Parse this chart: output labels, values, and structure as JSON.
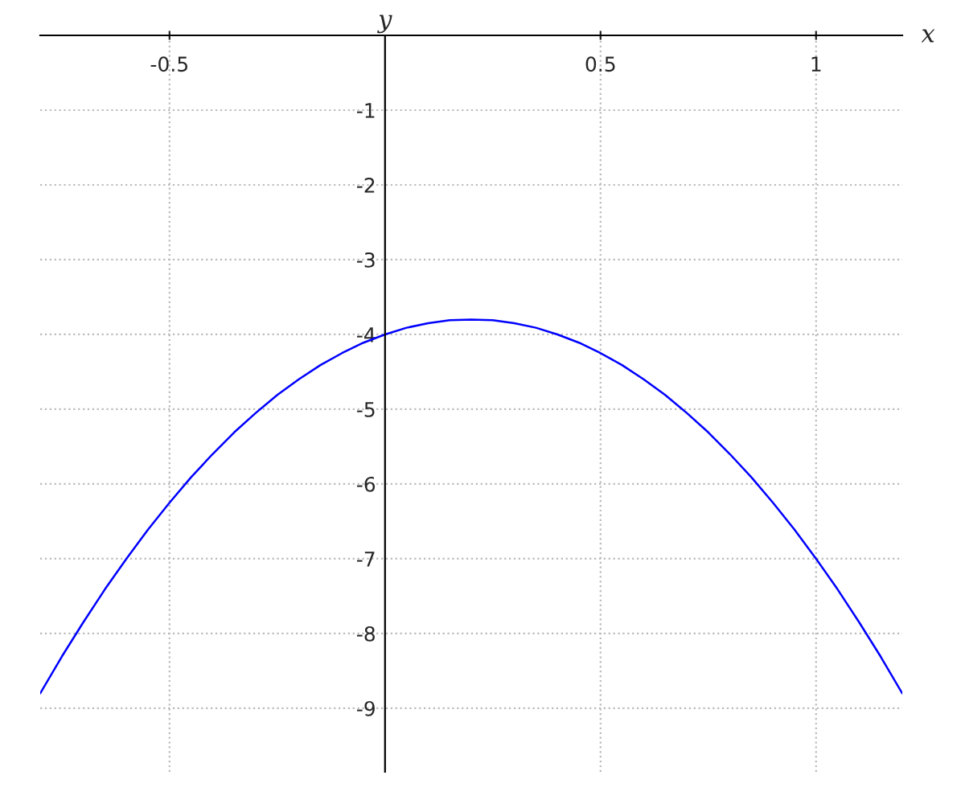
{
  "chart_data": {
    "type": "line",
    "xlabel": "x",
    "ylabel": "y",
    "x": [
      -0.8,
      -0.75,
      -0.7,
      -0.65,
      -0.6,
      -0.55,
      -0.5,
      -0.45,
      -0.4,
      -0.35,
      -0.3,
      -0.25,
      -0.2,
      -0.15,
      -0.1,
      -0.05,
      0,
      0.05,
      0.1,
      0.15,
      0.2,
      0.25,
      0.3,
      0.35,
      0.4,
      0.45,
      0.5,
      0.55,
      0.6,
      0.65,
      0.7,
      0.75,
      0.8,
      0.85,
      0.9,
      0.95,
      1.0,
      1.05,
      1.1,
      1.15,
      1.2
    ],
    "series": [
      {
        "color": "#0000ff",
        "values": [
          -8.8,
          -8.31,
          -7.85,
          -7.41,
          -7.0,
          -6.61,
          -6.25,
          -5.91,
          -5.6,
          -5.31,
          -5.05,
          -4.81,
          -4.6,
          -4.41,
          -4.25,
          -4.11,
          -4.0,
          -3.91,
          -3.85,
          -3.81,
          -3.8,
          -3.81,
          -3.85,
          -3.91,
          -4.0,
          -4.11,
          -4.25,
          -4.41,
          -4.6,
          -4.81,
          -5.05,
          -5.31,
          -5.6,
          -5.91,
          -6.25,
          -6.61,
          -7.0,
          -7.41,
          -7.85,
          -8.31,
          -8.8
        ]
      }
    ],
    "xlim": [
      -0.8,
      1.2
    ],
    "ylim": [
      -9.85,
      0
    ],
    "xticks": [
      -0.5,
      0.5,
      1
    ],
    "yticks": [
      -9,
      -8,
      -7,
      -6,
      -5,
      -4,
      -3,
      -2,
      -1
    ],
    "grid": true,
    "line_style": "solid",
    "marker": "none"
  }
}
